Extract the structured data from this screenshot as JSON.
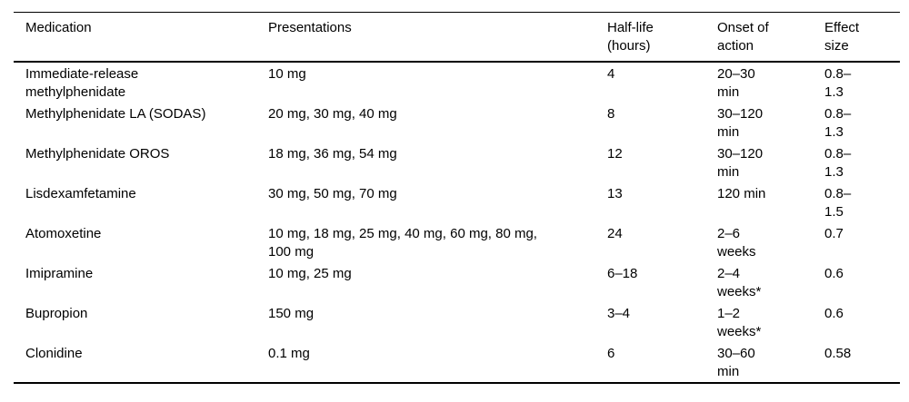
{
  "colors": {
    "text": "#000000",
    "rule": "#000000",
    "background": "#ffffff"
  },
  "table": {
    "headers": {
      "medication": "Medication",
      "presentations": "Presentations",
      "half_life": "Half-life (hours)",
      "onset": "Onset of action",
      "effect_size": "Effect size"
    },
    "rows": [
      {
        "medication": "Immediate-release methylphenidate",
        "presentations": "10 mg",
        "half_life": "4",
        "onset": "20–30 min",
        "effect_size": "0.8–1.3"
      },
      {
        "medication": "Methylphenidate LA (SODAS)",
        "presentations": "20 mg, 30 mg, 40 mg",
        "half_life": "8",
        "onset": "30–120 min",
        "effect_size": "0.8–1.3"
      },
      {
        "medication": "Methylphenidate OROS",
        "presentations": "18 mg, 36 mg, 54 mg",
        "half_life": "12",
        "onset": "30–120 min",
        "effect_size": "0.8–1.3"
      },
      {
        "medication": "Lisdexamfetamine",
        "presentations": "30 mg, 50 mg, 70 mg",
        "half_life": "13",
        "onset": "120 min",
        "effect_size": "0.8–1.5"
      },
      {
        "medication": "Atomoxetine",
        "presentations": "10 mg, 18 mg, 25 mg, 40 mg, 60 mg, 80 mg, 100 mg",
        "half_life": "24",
        "onset": "2–6 weeks",
        "effect_size": "0.7"
      },
      {
        "medication": "Imipramine",
        "presentations": "10 mg, 25 mg",
        "half_life": "6–18",
        "onset": "2–4 weeks*",
        "effect_size": "0.6"
      },
      {
        "medication": "Bupropion",
        "presentations": "150 mg",
        "half_life": "3–4",
        "onset": "1–2 weeks*",
        "effect_size": "0.6"
      },
      {
        "medication": "Clonidine",
        "presentations": "0.1 mg",
        "half_life": "6",
        "onset": "30–60 min",
        "effect_size": "0.58"
      }
    ]
  }
}
